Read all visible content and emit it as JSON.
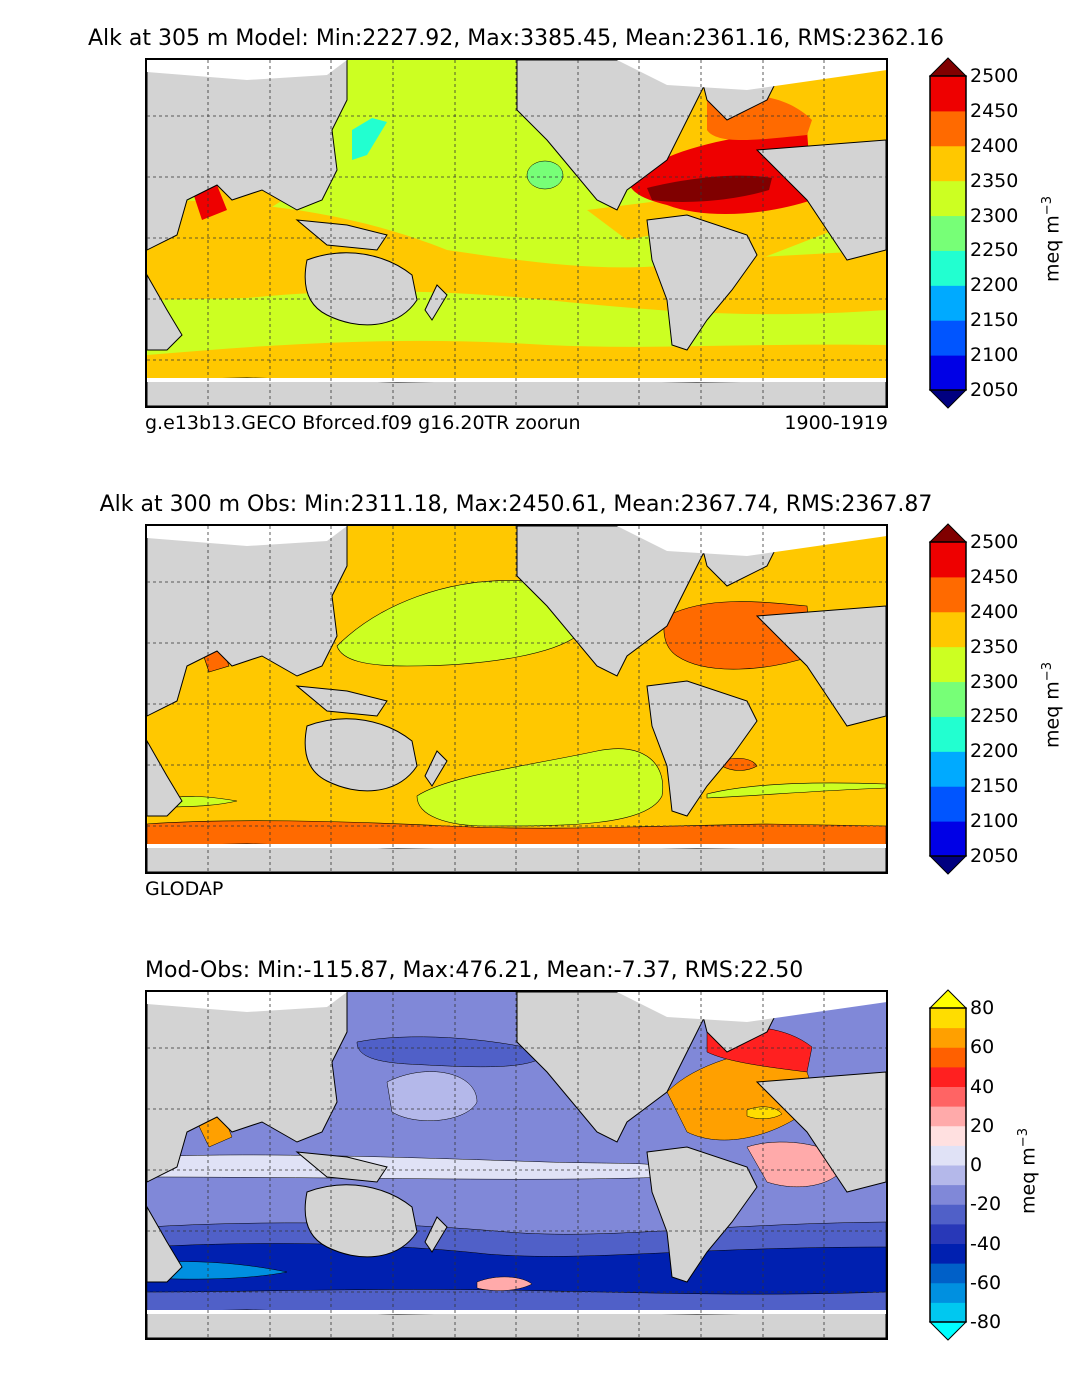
{
  "chart_data": [
    {
      "type": "heatmap",
      "title": "Alk at 305 m Model: Min:2227.92, Max:3385.45, Mean:2361.16, RMS:2362.16",
      "footer_left": "g.e13b13.GECO Bforced.f09 g16.20TR zoorun",
      "footer_right": "1900-1919",
      "colorbar": {
        "label": "meq m",
        "label_exp": "−3",
        "ticks": [
          "2500",
          "2450",
          "2400",
          "2350",
          "2300",
          "2250",
          "2200",
          "2150",
          "2100",
          "2050"
        ],
        "levels": [
          2050,
          2100,
          2150,
          2200,
          2250,
          2300,
          2350,
          2400,
          2450,
          2500
        ],
        "colors": [
          "#000080",
          "#0000e6",
          "#0055ff",
          "#00aaff",
          "#22ffd0",
          "#77ff77",
          "#ccff22",
          "#ffc800",
          "#ff6a00",
          "#ee0000",
          "#800000"
        ],
        "extend": "both"
      },
      "grid": true,
      "xlim": [
        20,
        380
      ],
      "ylim": [
        -80,
        90
      ]
    },
    {
      "type": "heatmap",
      "title": "Alk at 300 m Obs: Min:2311.18, Max:2450.61, Mean:2367.74, RMS:2367.87",
      "footer_left": "GLODAP",
      "footer_right": "",
      "colorbar": {
        "label": "meq m",
        "label_exp": "−3",
        "ticks": [
          "2500",
          "2450",
          "2400",
          "2350",
          "2300",
          "2250",
          "2200",
          "2150",
          "2100",
          "2050"
        ],
        "levels": [
          2050,
          2100,
          2150,
          2200,
          2250,
          2300,
          2350,
          2400,
          2450,
          2500
        ],
        "colors": [
          "#000080",
          "#0000e6",
          "#0055ff",
          "#00aaff",
          "#22ffd0",
          "#77ff77",
          "#ccff22",
          "#ffc800",
          "#ff6a00",
          "#ee0000",
          "#800000"
        ],
        "extend": "both"
      },
      "grid": true,
      "xlim": [
        20,
        380
      ],
      "ylim": [
        -80,
        90
      ]
    },
    {
      "type": "heatmap",
      "title": "Mod-Obs: Min:-115.87, Max:476.21, Mean:-7.37, RMS:22.50",
      "footer_left": "",
      "footer_right": "",
      "colorbar": {
        "label": "meq m",
        "label_exp": "−3",
        "ticks": [
          "80",
          "60",
          "40",
          "20",
          "0",
          "-20",
          "-40",
          "-60",
          "-80"
        ],
        "levels": [
          -80,
          -70,
          -60,
          -50,
          -40,
          -30,
          -20,
          -10,
          0,
          10,
          20,
          30,
          40,
          50,
          60,
          70,
          80
        ],
        "colors": [
          "#00ffff",
          "#00c8f0",
          "#0090e0",
          "#0060c8",
          "#0020b0",
          "#2838b8",
          "#5060c8",
          "#8088d8",
          "#b4b8ea",
          "#e0e2f6",
          "#ffe0e0",
          "#ffaaaa",
          "#ff6464",
          "#ff2020",
          "#ff6000",
          "#ffa000",
          "#ffdd00",
          "#ffff00"
        ],
        "extend": "both"
      },
      "grid": true,
      "xlim": [
        20,
        380
      ],
      "ylim": [
        -80,
        90
      ]
    }
  ]
}
